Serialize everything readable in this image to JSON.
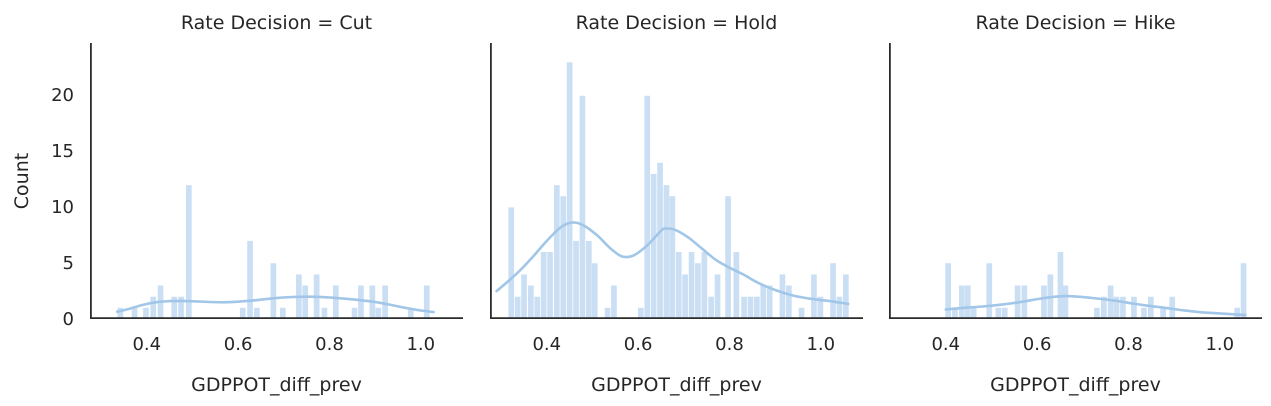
{
  "figure": {
    "ylabel": "Count",
    "xlabel": "GDPPOT_diff_prev",
    "facet_variable": "Rate Decision",
    "facet_values": [
      "Cut",
      "Hold",
      "Hike"
    ],
    "yticks": [
      0,
      5,
      10,
      15,
      20
    ],
    "xticks": [
      "0.4",
      "0.6",
      "0.8",
      "1.0"
    ],
    "xtick_values": [
      0.4,
      0.6,
      0.8,
      1.0
    ],
    "colors": {
      "bar_fill": "#cbdff4",
      "kde_line": "#a1c6e7",
      "spine": "#2b2b2b",
      "text": "#262626",
      "background": "#ffffff"
    }
  },
  "chart_data": [
    {
      "type": "bar",
      "subtype": "histogram_with_kde",
      "title": "Rate Decision = Cut",
      "xlabel": "GDPPOT_diff_prev",
      "ylabel": "Count",
      "xlim": [
        0.2755,
        1.0925
      ],
      "ylim": [
        0,
        24.73
      ],
      "bin_width": 0.0125,
      "grid": false,
      "legend": false,
      "bars": {
        "x": [
          0.342,
          0.373,
          0.398,
          0.414,
          0.43,
          0.46,
          0.475,
          0.492,
          0.61,
          0.626,
          0.641,
          0.677,
          0.698,
          0.733,
          0.747,
          0.772,
          0.789,
          0.814,
          0.855,
          0.869,
          0.894,
          0.907,
          0.922,
          0.978,
          1.013
        ],
        "counts": [
          1,
          1,
          1,
          2,
          3,
          2,
          2,
          12,
          1,
          7,
          1,
          5,
          1,
          4,
          3,
          4,
          1,
          3,
          1,
          3,
          3,
          1,
          3,
          1,
          3
        ]
      },
      "kde": {
        "x": [
          0.335,
          0.36,
          0.39,
          0.42,
          0.45,
          0.48,
          0.51,
          0.54,
          0.57,
          0.6,
          0.63,
          0.66,
          0.69,
          0.72,
          0.75,
          0.78,
          0.81,
          0.84,
          0.87,
          0.9,
          0.93,
          0.96,
          0.99,
          1.028
        ],
        "y": [
          0.65,
          0.9,
          1.25,
          1.5,
          1.6,
          1.62,
          1.58,
          1.52,
          1.5,
          1.55,
          1.65,
          1.78,
          1.9,
          1.97,
          2.0,
          1.98,
          1.9,
          1.8,
          1.68,
          1.52,
          1.3,
          1.05,
          0.82,
          0.62
        ]
      }
    },
    {
      "type": "bar",
      "subtype": "histogram_with_kde",
      "title": "Rate Decision = Hold",
      "xlabel": "GDPPOT_diff_prev",
      "ylabel": "Count",
      "xlim": [
        0.2755,
        1.0925
      ],
      "ylim": [
        0,
        24.73
      ],
      "bin_width": 0.0125,
      "grid": false,
      "legend": false,
      "bars": {
        "x": [
          0.322,
          0.336,
          0.35,
          0.365,
          0.379,
          0.393,
          0.407,
          0.422,
          0.436,
          0.45,
          0.464,
          0.478,
          0.492,
          0.505,
          0.533,
          0.547,
          0.606,
          0.62,
          0.634,
          0.648,
          0.662,
          0.675,
          0.689,
          0.703,
          0.717,
          0.731,
          0.745,
          0.76,
          0.774,
          0.797,
          0.815,
          0.832,
          0.846,
          0.86,
          0.874,
          0.888,
          0.916,
          0.93,
          0.958,
          0.985,
          0.999,
          1.027,
          1.041,
          1.055
        ],
        "counts": [
          10,
          2,
          4,
          3,
          2,
          6,
          6,
          12,
          11,
          23,
          7,
          20,
          7,
          5,
          1,
          3,
          1,
          20,
          13,
          14,
          12,
          11,
          6,
          4,
          6,
          5,
          6,
          2,
          4,
          11,
          6,
          2,
          2,
          2,
          3,
          3,
          4,
          3,
          1,
          4,
          2,
          5,
          2,
          4
        ]
      },
      "kde": {
        "x": [
          0.29,
          0.31,
          0.34,
          0.37,
          0.4,
          0.43,
          0.455,
          0.48,
          0.51,
          0.54,
          0.565,
          0.59,
          0.62,
          0.65,
          0.66,
          0.68,
          0.71,
          0.74,
          0.77,
          0.8,
          0.83,
          0.86,
          0.9,
          0.94,
          0.98,
          1.02,
          1.06
        ],
        "y": [
          2.5,
          3.2,
          4.3,
          5.6,
          7.0,
          8.2,
          8.65,
          8.4,
          7.5,
          6.3,
          5.6,
          5.7,
          6.6,
          7.9,
          8.1,
          8.0,
          7.3,
          6.3,
          5.3,
          4.6,
          4.0,
          3.3,
          2.6,
          2.1,
          1.8,
          1.6,
          1.35
        ]
      }
    },
    {
      "type": "bar",
      "subtype": "histogram_with_kde",
      "title": "Rate Decision = Hike",
      "xlabel": "GDPPOT_diff_prev",
      "ylabel": "Count",
      "xlim": [
        0.2755,
        1.0925
      ],
      "ylim": [
        0,
        24.73
      ],
      "bin_width": 0.0125,
      "grid": false,
      "legend": false,
      "bars": {
        "x": [
          0.405,
          0.42,
          0.435,
          0.448,
          0.461,
          0.495,
          0.515,
          0.529,
          0.557,
          0.572,
          0.615,
          0.629,
          0.651,
          0.662,
          0.731,
          0.746,
          0.761,
          0.774,
          0.788,
          0.812,
          0.834,
          0.849,
          0.876,
          0.896,
          1.038,
          1.052
        ],
        "counts": [
          5,
          1,
          3,
          3,
          1,
          5,
          1,
          1,
          3,
          3,
          3,
          4,
          6,
          3,
          1,
          2,
          3,
          2,
          2,
          2,
          1,
          2,
          1,
          2,
          1,
          5
        ]
      },
      "kde": {
        "x": [
          0.4,
          0.44,
          0.48,
          0.52,
          0.56,
          0.6,
          0.63,
          0.66,
          0.69,
          0.72,
          0.76,
          0.8,
          0.84,
          0.88,
          0.92,
          0.96,
          1.0,
          1.03,
          1.056
        ],
        "y": [
          0.85,
          1.0,
          1.12,
          1.28,
          1.5,
          1.78,
          1.95,
          2.05,
          2.0,
          1.88,
          1.7,
          1.45,
          1.2,
          1.0,
          0.78,
          0.6,
          0.5,
          0.42,
          0.35
        ]
      }
    }
  ]
}
